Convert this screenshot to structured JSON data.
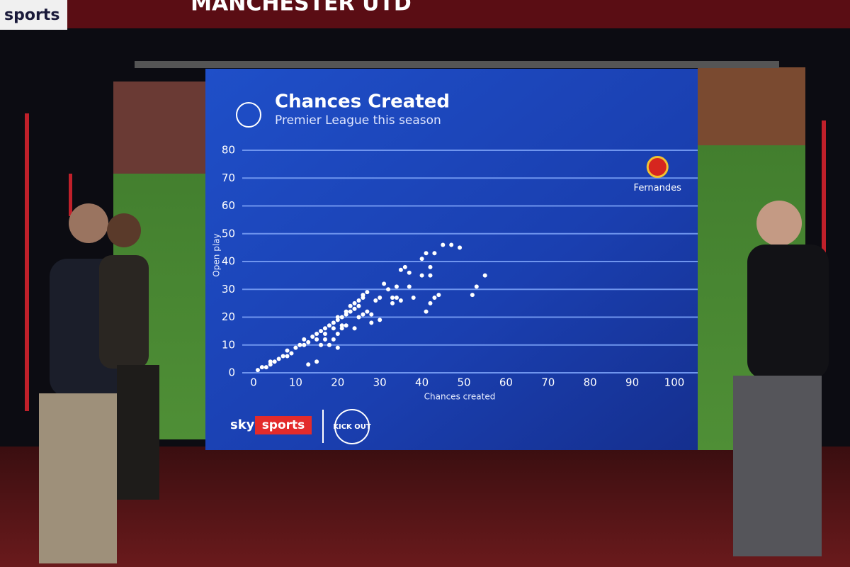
{
  "scene": {
    "banner": "MANCHESTER UTD",
    "corner_logo": "sports"
  },
  "chart_data": {
    "type": "scatter",
    "title": "Chances Created",
    "subtitle": "Premier League this season",
    "xlabel": "Chances created",
    "ylabel": "Open play",
    "color": "#ffffff",
    "x": [
      1,
      2,
      3,
      4,
      4,
      5,
      6,
      7,
      8,
      8,
      9,
      10,
      11,
      12,
      12,
      13,
      14,
      15,
      15,
      16,
      17,
      17,
      18,
      19,
      19,
      20,
      20,
      21,
      21,
      22,
      22,
      23,
      23,
      24,
      24,
      25,
      25,
      26,
      26,
      27,
      27,
      28,
      28,
      29,
      30,
      30,
      31,
      32,
      33,
      33,
      34,
      34,
      35,
      35,
      36,
      37,
      37,
      38,
      20,
      22,
      24,
      25,
      26,
      15,
      13,
      21,
      41,
      40,
      42,
      42,
      43,
      40,
      41,
      42,
      43,
      44,
      45,
      47,
      49,
      52,
      53,
      55,
      16,
      18,
      19,
      20,
      17
    ],
    "values": [
      1,
      2,
      2,
      3,
      4,
      4,
      5,
      6,
      6,
      8,
      7,
      9,
      10,
      10,
      12,
      11,
      13,
      14,
      12,
      15,
      14,
      16,
      17,
      18,
      16,
      19,
      20,
      20,
      17,
      21,
      22,
      22,
      24,
      23,
      25,
      26,
      24,
      27,
      28,
      29,
      22,
      21,
      18,
      26,
      19,
      27,
      32,
      30,
      25,
      27,
      27,
      31,
      37,
      26,
      38,
      36,
      31,
      27,
      9,
      17,
      16,
      20,
      21,
      4,
      3,
      16,
      43,
      41,
      38,
      35,
      43,
      35,
      22,
      25,
      27,
      28,
      46,
      46,
      45,
      28,
      31,
      35,
      10,
      10,
      12,
      14,
      12
    ],
    "annotations": [
      {
        "text": "Fernandes",
        "x": 96,
        "y": 74
      }
    ],
    "xlim": [
      0,
      100
    ],
    "ylim": [
      0,
      80
    ],
    "xticks": [
      0,
      10,
      20,
      30,
      40,
      50,
      60,
      70,
      80,
      90,
      100
    ],
    "yticks": [
      0,
      10,
      20,
      30,
      40,
      50,
      60,
      70,
      80
    ],
    "grid": true,
    "footer": {
      "brand": "sky",
      "brand_suffix": "sports",
      "partner": "KICK OUT"
    }
  }
}
